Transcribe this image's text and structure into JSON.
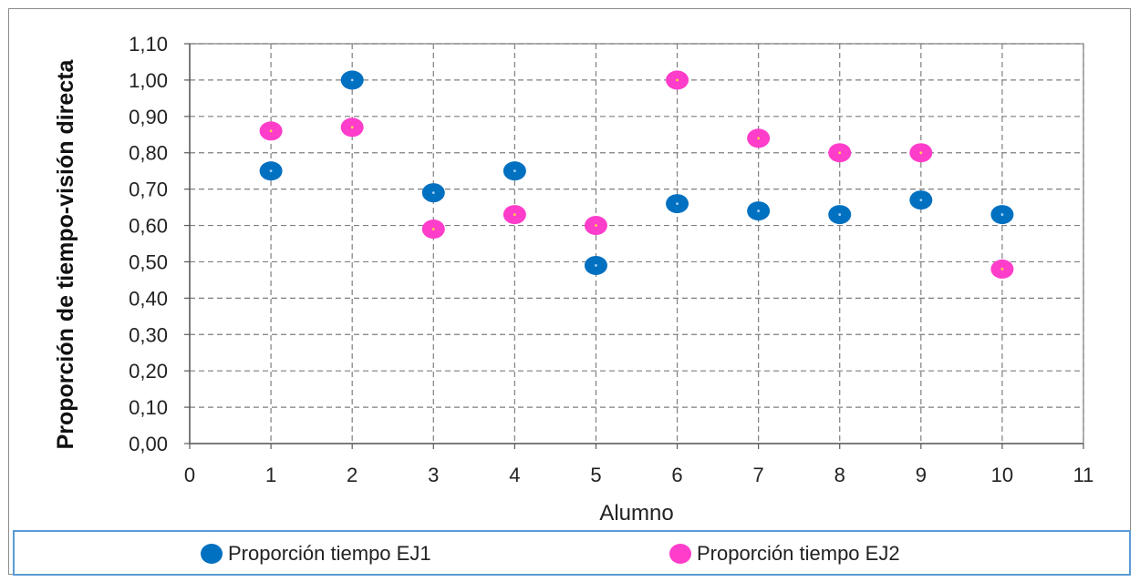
{
  "chart_data": {
    "type": "scatter",
    "xlabel": "Alumno",
    "ylabel": "Proporción de tiempo-visión directa",
    "xlim": [
      0,
      11
    ],
    "ylim": [
      0,
      1.1
    ],
    "x_ticks": [
      "0",
      "1",
      "2",
      "3",
      "4",
      "5",
      "6",
      "7",
      "8",
      "9",
      "10",
      "11"
    ],
    "y_ticks": [
      "0,00",
      "0,10",
      "0,20",
      "0,30",
      "0,40",
      "0,50",
      "0,60",
      "0,70",
      "0,80",
      "0,90",
      "1,00",
      "1,10"
    ],
    "grid": true,
    "legend_position": "bottom",
    "series": [
      {
        "name": "Proporción tiempo EJ1",
        "color": "#0070c0",
        "x": [
          1,
          2,
          3,
          4,
          5,
          6,
          7,
          8,
          9,
          10
        ],
        "y": [
          0.75,
          1.0,
          0.69,
          0.75,
          0.49,
          0.66,
          0.64,
          0.63,
          0.67,
          0.63
        ]
      },
      {
        "name": "Proporción tiempo EJ2",
        "color": "#ff3dcb",
        "x": [
          1,
          2,
          3,
          4,
          5,
          6,
          7,
          8,
          9,
          10
        ],
        "y": [
          0.86,
          0.87,
          0.59,
          0.63,
          0.6,
          1.0,
          0.84,
          0.8,
          0.8,
          0.48
        ]
      }
    ]
  }
}
